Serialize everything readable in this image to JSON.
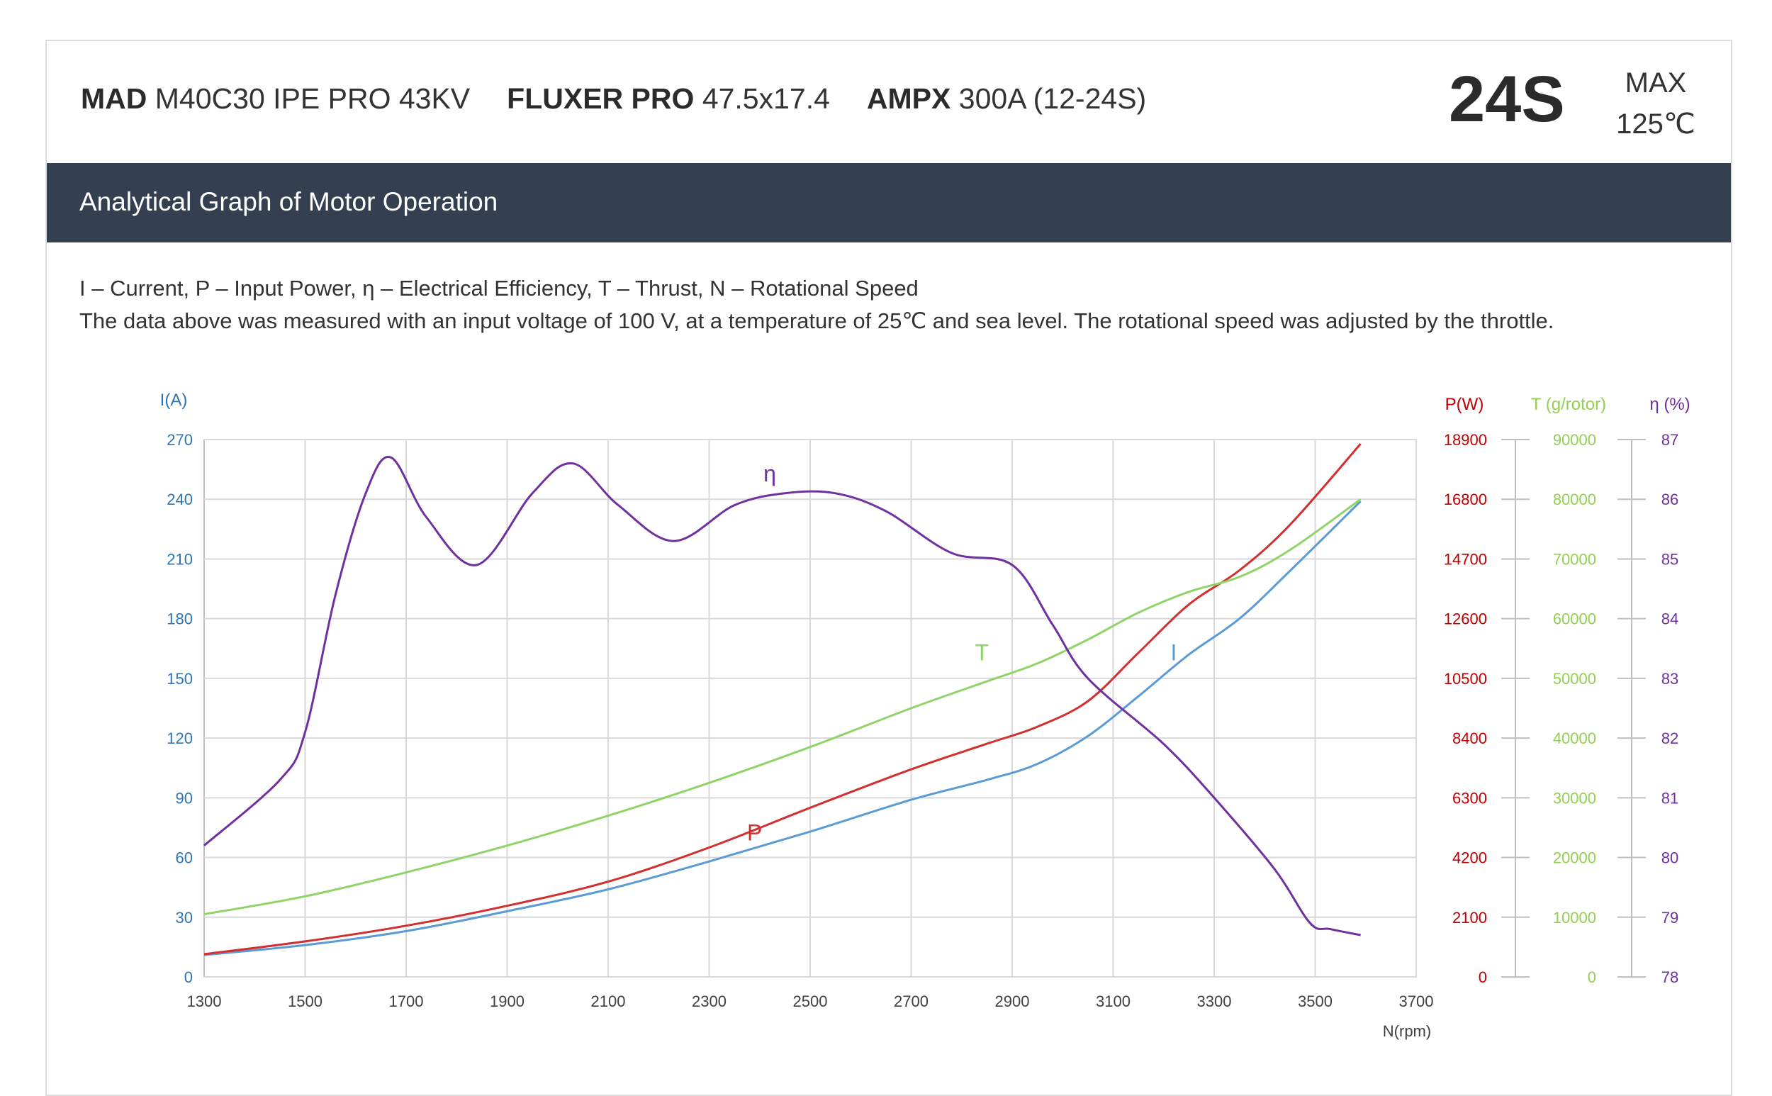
{
  "header": {
    "product": [
      {
        "brand": "MAD",
        "model": "M40C30 IPE PRO 43KV"
      },
      {
        "brand": "FLUXER PRO",
        "model": "47.5x17.4"
      },
      {
        "brand": "AMPX",
        "model": "300A (12-24S)"
      }
    ],
    "voltage": "24S",
    "max_label": "MAX",
    "max_temp": "125℃"
  },
  "banner": {
    "title": "Analytical Graph of Motor Operation"
  },
  "description": {
    "legend_line": "I – Current, P – Input Power, η – Electrical Efficiency, T – Thrust,   N – Rotational Speed",
    "note_line": "The data above was measured with an input voltage of 100 V, at a temperature of 25℃ and sea level. The rotational speed was adjusted by the throttle."
  },
  "chart_data": {
    "type": "line",
    "xlabel": "N(rpm)",
    "xlim": [
      1300,
      3700
    ],
    "x_ticks": [
      "1300",
      "1500",
      "1700",
      "1900",
      "2100",
      "2300",
      "2500",
      "2700",
      "2900",
      "3100",
      "3300",
      "3500",
      "3700"
    ],
    "grid": true,
    "axes": {
      "I": {
        "label": "I(A)",
        "lim": [
          0,
          270
        ],
        "ticks": [
          "0",
          "30",
          "60",
          "90",
          "120",
          "150",
          "180",
          "210",
          "240",
          "270"
        ],
        "color": "#2e75b6"
      },
      "P": {
        "label": "P(W)",
        "lim": [
          0,
          18900
        ],
        "ticks": [
          "0",
          "2100",
          "4200",
          "6300",
          "8400",
          "10500",
          "12600",
          "14700",
          "16800",
          "18900"
        ],
        "color": "#c00000"
      },
      "T": {
        "label": "T (g/rotor)",
        "lim": [
          0,
          90000
        ],
        "ticks": [
          "0",
          "10000",
          "20000",
          "30000",
          "40000",
          "50000",
          "60000",
          "70000",
          "80000",
          "90000"
        ],
        "color": "#92d050"
      },
      "eta": {
        "label": "η (%)",
        "lim": [
          78,
          87
        ],
        "ticks": [
          "78",
          "79",
          "80",
          "81",
          "82",
          "83",
          "84",
          "85",
          "86",
          "87"
        ],
        "color": "#7030a0"
      }
    },
    "series": [
      {
        "name": "I",
        "axis": "I",
        "color": "#5b9bd5",
        "x": [
          1300,
          1500,
          1700,
          1900,
          2100,
          2300,
          2500,
          2700,
          2850,
          2950,
          3050,
          3150,
          3250,
          3350,
          3450,
          3590
        ],
        "y": [
          11,
          16,
          23,
          33,
          44,
          58,
          73,
          89,
          99,
          107,
          121,
          141,
          162,
          180,
          204,
          239
        ]
      },
      {
        "name": "P",
        "axis": "P",
        "color": "#d32f2f",
        "x": [
          1300,
          1500,
          1700,
          1900,
          2100,
          2300,
          2500,
          2700,
          2850,
          2950,
          3050,
          3150,
          3250,
          3350,
          3450,
          3590
        ],
        "y": [
          800,
          1250,
          1800,
          2500,
          3350,
          4550,
          5950,
          7300,
          8200,
          8800,
          9700,
          11400,
          13100,
          14300,
          15900,
          18750
        ]
      },
      {
        "name": "T",
        "axis": "T",
        "color": "#8fd468",
        "x": [
          1300,
          1500,
          1700,
          1900,
          2100,
          2300,
          2500,
          2700,
          2850,
          2950,
          3050,
          3150,
          3250,
          3350,
          3450,
          3590
        ],
        "y": [
          10500,
          13500,
          17500,
          22000,
          27000,
          32500,
          38500,
          45000,
          49500,
          52500,
          56500,
          61000,
          64500,
          67000,
          71500,
          80000
        ]
      },
      {
        "name": "η",
        "axis": "eta",
        "color": "#7030a0",
        "x": [
          1300,
          1450,
          1500,
          1560,
          1620,
          1670,
          1740,
          1840,
          1950,
          2030,
          2120,
          2230,
          2350,
          2450,
          2550,
          2650,
          2780,
          2900,
          2980,
          3050,
          3200,
          3300,
          3420,
          3490,
          3530,
          3590
        ],
        "y": [
          80.2,
          81.3,
          82.1,
          84.4,
          86.1,
          86.7,
          85.7,
          84.9,
          86.1,
          86.6,
          85.9,
          85.3,
          85.9,
          86.1,
          86.1,
          85.8,
          85.1,
          84.9,
          83.9,
          83.0,
          81.9,
          81.0,
          79.8,
          78.9,
          78.8,
          78.7
        ]
      }
    ],
    "annotations": [
      {
        "text": "η",
        "x": 2420,
        "axis": "eta",
        "y": 86.3,
        "color": "#7030a0"
      },
      {
        "text": "T",
        "x": 2840,
        "axis": "T",
        "y": 53000,
        "color": "#8fd468"
      },
      {
        "text": "I",
        "x": 3220,
        "axis": "I",
        "y": 159,
        "color": "#5b9bd5"
      },
      {
        "text": "P",
        "x": 2390,
        "axis": "P",
        "y": 4800,
        "color": "#d32f2f"
      }
    ]
  }
}
